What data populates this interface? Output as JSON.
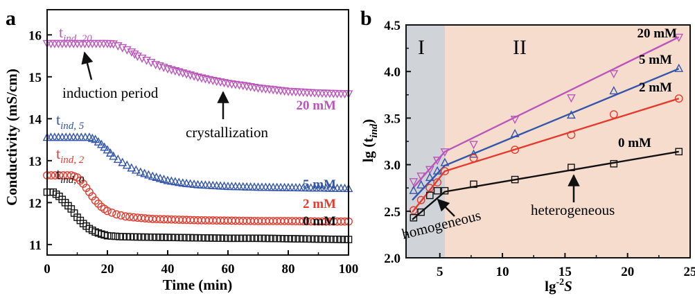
{
  "chart_data": [
    {
      "panel": "a",
      "type": "scatter",
      "xlabel": "Time (min)",
      "ylabel": "Conductivity (mS/cm)",
      "xlim": [
        0,
        100
      ],
      "ylim": [
        10.75,
        16.6
      ],
      "xticks": [
        0,
        20,
        40,
        60,
        80,
        100
      ],
      "yticks": [
        11,
        12,
        13,
        14,
        15,
        16
      ],
      "colors": {
        "s20": "#bb55bb",
        "s5": "#3355aa",
        "s2": "#e33b2e",
        "s0": "#111111"
      },
      "series": [
        {
          "name": "20 mM",
          "marker": "triangle-down",
          "key": "s20",
          "points": [
            [
              0,
              15.8
            ],
            [
              5,
              15.8
            ],
            [
              10,
              15.8
            ],
            [
              15,
              15.8
            ],
            [
              20,
              15.8
            ],
            [
              22,
              15.79
            ],
            [
              25,
              15.7
            ],
            [
              28,
              15.6
            ],
            [
              30,
              15.5
            ],
            [
              33,
              15.4
            ],
            [
              36,
              15.3
            ],
            [
              40,
              15.2
            ],
            [
              45,
              15.1
            ],
            [
              50,
              15.0
            ],
            [
              55,
              14.92
            ],
            [
              60,
              14.85
            ],
            [
              65,
              14.8
            ],
            [
              70,
              14.74
            ],
            [
              75,
              14.7
            ],
            [
              80,
              14.66
            ],
            [
              85,
              14.64
            ],
            [
              90,
              14.62
            ],
            [
              95,
              14.61
            ],
            [
              100,
              14.6
            ]
          ]
        },
        {
          "name": "5 mM",
          "marker": "triangle-up",
          "key": "s5",
          "points": [
            [
              0,
              13.55
            ],
            [
              5,
              13.55
            ],
            [
              10,
              13.55
            ],
            [
              14,
              13.55
            ],
            [
              16,
              13.5
            ],
            [
              18,
              13.38
            ],
            [
              20,
              13.25
            ],
            [
              22,
              13.1
            ],
            [
              25,
              12.95
            ],
            [
              28,
              12.82
            ],
            [
              31,
              12.72
            ],
            [
              35,
              12.62
            ],
            [
              40,
              12.52
            ],
            [
              45,
              12.46
            ],
            [
              50,
              12.42
            ],
            [
              60,
              12.38
            ],
            [
              70,
              12.36
            ],
            [
              80,
              12.35
            ],
            [
              90,
              12.34
            ],
            [
              100,
              12.33
            ]
          ]
        },
        {
          "name": "2 mM",
          "marker": "circle",
          "key": "s2",
          "points": [
            [
              0,
              12.65
            ],
            [
              4,
              12.65
            ],
            [
              8,
              12.65
            ],
            [
              10,
              12.6
            ],
            [
              12,
              12.45
            ],
            [
              14,
              12.25
            ],
            [
              16,
              12.05
            ],
            [
              18,
              11.9
            ],
            [
              20,
              11.8
            ],
            [
              23,
              11.72
            ],
            [
              26,
              11.67
            ],
            [
              30,
              11.64
            ],
            [
              35,
              11.61
            ],
            [
              40,
              11.6
            ],
            [
              50,
              11.58
            ],
            [
              60,
              11.57
            ],
            [
              70,
              11.56
            ],
            [
              80,
              11.56
            ],
            [
              90,
              11.55
            ],
            [
              100,
              11.55
            ]
          ]
        },
        {
          "name": "0 mM",
          "marker": "square",
          "key": "s0",
          "points": [
            [
              0,
              12.25
            ],
            [
              2,
              12.25
            ],
            [
              4,
              12.15
            ],
            [
              6,
              12.0
            ],
            [
              8,
              11.85
            ],
            [
              10,
              11.65
            ],
            [
              12,
              11.5
            ],
            [
              14,
              11.38
            ],
            [
              16,
              11.3
            ],
            [
              18,
              11.25
            ],
            [
              20,
              11.21
            ],
            [
              24,
              11.19
            ],
            [
              30,
              11.18
            ],
            [
              40,
              11.17
            ],
            [
              50,
              11.16
            ],
            [
              60,
              11.15
            ],
            [
              70,
              11.15
            ],
            [
              80,
              11.14
            ],
            [
              90,
              11.13
            ],
            [
              100,
              11.12
            ]
          ]
        }
      ],
      "series_labels": [
        "20 mM",
        "5 mM",
        "2 mM",
        "0 mM"
      ],
      "tind_labels": [
        {
          "base": "t",
          "sub": "ind, 20",
          "key": "s20"
        },
        {
          "base": "t",
          "sub": "ind, 5",
          "key": "s5"
        },
        {
          "base": "t",
          "sub": "ind, 2",
          "key": "s2"
        },
        {
          "base": "t",
          "sub": "ind, 0",
          "key": "s0"
        }
      ],
      "annotations": [
        "induction period",
        "crystallization"
      ]
    },
    {
      "panel": "b",
      "type": "scatter",
      "xlabel_base": "lg",
      "xlabel_sup": "-2",
      "xlabel_italic": "S",
      "ylabel_base": "lg (t",
      "ylabel_sub": "ind",
      "ylabel_end": ")",
      "xlim": [
        2.3,
        25
      ],
      "ylim": [
        2.0,
        4.5
      ],
      "xticks": [
        5,
        10,
        15,
        20,
        25
      ],
      "yticks": [
        2.0,
        2.5,
        3.0,
        3.5,
        4.0,
        4.5
      ],
      "region_boundary_x": 5.4,
      "regions": [
        "I",
        "II"
      ],
      "region_colors": [
        "#d0d3d8",
        "#f6dccd"
      ],
      "colors": {
        "s20": "#bb55bb",
        "s5": "#3355aa",
        "s2": "#e33b2e",
        "s0": "#111111"
      },
      "series": [
        {
          "name": "20 mM",
          "marker": "triangle-down",
          "key": "s20",
          "points": [
            [
              2.9,
              2.82
            ],
            [
              3.5,
              2.88
            ],
            [
              4.2,
              2.95
            ],
            [
              4.8,
              3.05
            ],
            [
              5.4,
              3.14
            ],
            [
              7.7,
              3.22
            ],
            [
              11.0,
              3.49
            ],
            [
              15.5,
              3.72
            ],
            [
              18.9,
              3.98
            ],
            [
              24.1,
              4.37
            ]
          ],
          "fit": [
            [
              2.8,
              2.74
            ],
            [
              5.4,
              3.14
            ],
            [
              24.1,
              4.37
            ]
          ]
        },
        {
          "name": "5 mM",
          "marker": "triangle-up",
          "key": "s5",
          "points": [
            [
              2.9,
              2.72
            ],
            [
              3.5,
              2.78
            ],
            [
              4.2,
              2.86
            ],
            [
              4.8,
              2.93
            ],
            [
              5.4,
              3.02
            ],
            [
              7.7,
              3.11
            ],
            [
              11.0,
              3.33
            ],
            [
              15.5,
              3.53
            ],
            [
              18.9,
              3.79
            ],
            [
              24.1,
              4.03
            ]
          ],
          "fit": [
            [
              2.8,
              2.62
            ],
            [
              5.4,
              2.99
            ],
            [
              24.1,
              4.03
            ]
          ]
        },
        {
          "name": "2 mM",
          "marker": "circle",
          "key": "s2",
          "points": [
            [
              2.9,
              2.51
            ],
            [
              3.5,
              2.62
            ],
            [
              4.2,
              2.75
            ],
            [
              4.8,
              2.81
            ],
            [
              5.4,
              2.93
            ],
            [
              7.7,
              3.07
            ],
            [
              11.0,
              3.16
            ],
            [
              15.5,
              3.32
            ],
            [
              18.9,
              3.54
            ],
            [
              24.1,
              3.71
            ]
          ],
          "fit": [
            [
              2.8,
              2.49
            ],
            [
              5.4,
              2.93
            ],
            [
              24.1,
              3.71
            ]
          ]
        },
        {
          "name": "0 mM",
          "marker": "square",
          "key": "s0",
          "points": [
            [
              2.9,
              2.43
            ],
            [
              3.5,
              2.49
            ],
            [
              4.2,
              2.67
            ],
            [
              4.8,
              2.72
            ],
            [
              5.4,
              2.72
            ],
            [
              7.7,
              2.79
            ],
            [
              11.0,
              2.84
            ],
            [
              15.5,
              2.97
            ],
            [
              18.9,
              3.01
            ],
            [
              24.1,
              3.14
            ]
          ],
          "fit": [
            [
              2.8,
              2.41
            ],
            [
              5.4,
              2.71
            ],
            [
              24.1,
              3.14
            ]
          ]
        }
      ],
      "series_labels": [
        "20 mM",
        "5 mM",
        "2 mM",
        "0 mM"
      ],
      "annotations": [
        "homogeneous",
        "heterogeneous"
      ]
    }
  ]
}
